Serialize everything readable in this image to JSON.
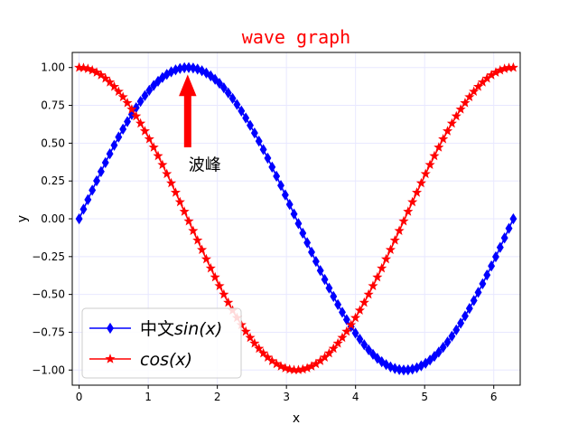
{
  "chart_data": {
    "type": "line",
    "title": "wave graph",
    "title_color": "#ff0000",
    "xlabel": "x",
    "ylabel": "y",
    "xlim": [
      -0.0995,
      6.3827
    ],
    "ylim": [
      -1.1,
      1.1
    ],
    "xticks": [
      0,
      1,
      2,
      3,
      4,
      5,
      6
    ],
    "xtick_labels": [
      "0",
      "1",
      "2",
      "3",
      "4",
      "5",
      "6"
    ],
    "yticks": [
      -1.0,
      -0.75,
      -0.5,
      -0.25,
      0.0,
      0.25,
      0.5,
      0.75,
      1.0
    ],
    "ytick_labels": [
      "−1.00",
      "−0.75",
      "−0.50",
      "−0.25",
      "0.00",
      "0.25",
      "0.50",
      "0.75",
      "1.00"
    ],
    "grid": true,
    "grid_color": "#e8e8ff",
    "x_range": [
      0,
      6.2832
    ],
    "n_points": 100,
    "series": [
      {
        "function": "sin",
        "legend_prefix": "中文",
        "legend_math": "sin(x)",
        "color": "#0000ff",
        "marker": "diamond"
      },
      {
        "function": "cos",
        "legend_prefix": "",
        "legend_math": "cos(x)",
        "color": "#ff0000",
        "marker": "star"
      }
    ],
    "legend": {
      "position": "lower-left"
    },
    "annotation": {
      "text": "波峰",
      "x": 1.5708,
      "y": 1.0,
      "text_x": 1.5708,
      "text_y": 0.5,
      "arrow_color": "#ff0000"
    }
  }
}
